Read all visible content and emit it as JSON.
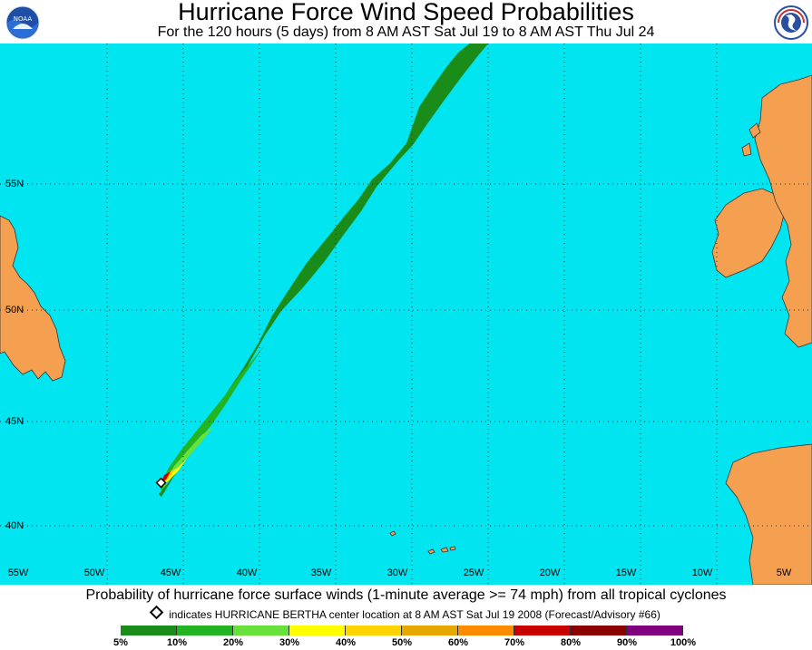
{
  "header": {
    "title": "Hurricane Force Wind Speed Probabilities",
    "subtitle": "For the 120 hours (5 days) from 8 AM AST Sat Jul 19 to 8 AM AST Thu Jul 24",
    "left_logo": "NOAA",
    "right_logo": "NATIONAL WEATHER SERVICE"
  },
  "map": {
    "lat_labels": [
      "55N",
      "50N",
      "45N",
      "40N"
    ],
    "lon_labels": [
      "55W",
      "50W",
      "45W",
      "40W",
      "35W",
      "30W",
      "25W",
      "20W",
      "15W",
      "10W",
      "5W"
    ],
    "colors": {
      "ocean": "#00e5f0",
      "land": "#f5a050",
      "grid": "#333333"
    }
  },
  "footer": {
    "caption": "Probability of hurricane force surface winds (1-minute average >= 74 mph) from all tropical cyclones",
    "note": "indicates HURRICANE BERTHA center location at 8 AM AST Sat Jul 19 2008 (Forecast/Advisory #66)"
  },
  "legend": {
    "labels": [
      "5%",
      "10%",
      "20%",
      "30%",
      "40%",
      "50%",
      "60%",
      "70%",
      "80%",
      "90%",
      "100%"
    ],
    "colors": [
      "#1a8c1a",
      "#22b422",
      "#66e23a",
      "#ffff00",
      "#ffd400",
      "#e6a800",
      "#ff8c00",
      "#c80000",
      "#8b0000",
      "#800080"
    ]
  }
}
